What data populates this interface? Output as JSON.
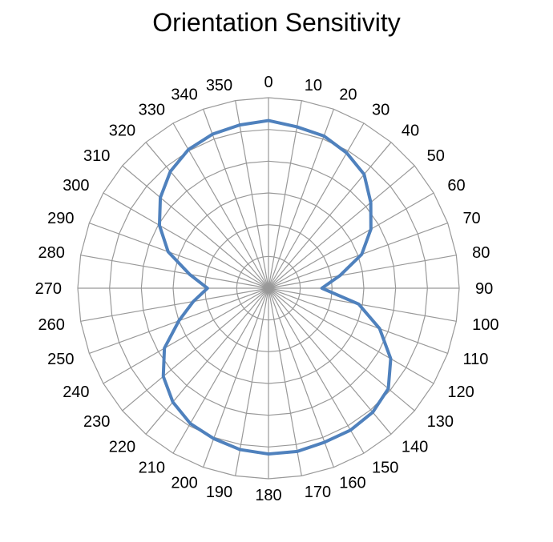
{
  "chart_data": {
    "type": "radar",
    "title": "Orientation Sensitivity",
    "angle_labels": [
      "0",
      "10",
      "20",
      "30",
      "40",
      "50",
      "60",
      "70",
      "80",
      "90",
      "100",
      "110",
      "120",
      "130",
      "140",
      "150",
      "160",
      "170",
      "180",
      "190",
      "200",
      "210",
      "220",
      "230",
      "240",
      "250",
      "260",
      "270",
      "280",
      "290",
      "300",
      "310",
      "320",
      "330",
      "340",
      "350"
    ],
    "angles_deg": [
      0,
      10,
      20,
      30,
      40,
      50,
      60,
      70,
      80,
      90,
      100,
      110,
      120,
      130,
      140,
      150,
      160,
      170,
      180,
      190,
      200,
      210,
      220,
      230,
      240,
      250,
      260,
      270,
      280,
      290,
      300,
      310,
      320,
      330,
      340,
      350
    ],
    "radial_rings": 6,
    "grid": true,
    "series": [
      {
        "color": "#4f81bd",
        "values": [
          0.88,
          0.86,
          0.85,
          0.82,
          0.78,
          0.7,
          0.62,
          0.52,
          0.38,
          0.28,
          0.48,
          0.62,
          0.74,
          0.82,
          0.85,
          0.86,
          0.86,
          0.87,
          0.87,
          0.86,
          0.84,
          0.82,
          0.78,
          0.72,
          0.63,
          0.5,
          0.4,
          0.32,
          0.42,
          0.56,
          0.66,
          0.74,
          0.8,
          0.84,
          0.86,
          0.87
        ]
      }
    ]
  }
}
